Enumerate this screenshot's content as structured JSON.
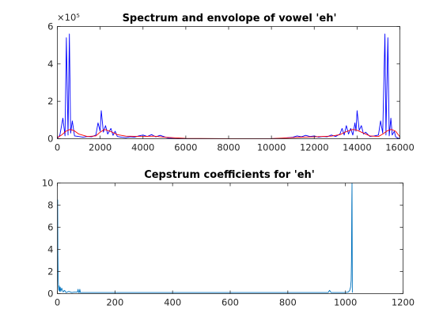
{
  "chart_data": [
    {
      "type": "line",
      "title": "Spectrum and envolope of vowel 'eh'",
      "xlabel": "",
      "ylabel": "",
      "xlim": [
        0,
        16000
      ],
      "ylim": [
        0,
        600000
      ],
      "y_exponent_label": "×10⁵",
      "xticks": [
        0,
        2000,
        4000,
        6000,
        8000,
        10000,
        12000,
        14000,
        16000
      ],
      "yticks": [
        0,
        200000,
        400000,
        600000
      ],
      "ytick_labels": [
        "0",
        "2",
        "4",
        "6"
      ],
      "grid": false,
      "series": [
        {
          "color": "#0000ff",
          "x": [
            0,
            120,
            260,
            360,
            420,
            500,
            560,
            620,
            700,
            800,
            1000,
            1200,
            1400,
            1600,
            1800,
            1900,
            2000,
            2050,
            2150,
            2250,
            2350,
            2500,
            2600,
            2700,
            2800,
            3000,
            3200,
            3400,
            3600,
            3800,
            4000,
            4200,
            4400,
            4600,
            4800,
            5000,
            5200,
            5500,
            6000,
            7000,
            8000,
            9000,
            10000,
            10500,
            11000,
            11200,
            11400,
            11600,
            11800,
            12000,
            12200,
            12400,
            12600,
            12800,
            13000,
            13200,
            13300,
            13400,
            13500,
            13600,
            13700,
            13800,
            13900,
            13950,
            14000,
            14100,
            14200,
            14300,
            14400,
            14600,
            14800,
            15000,
            15100,
            15200,
            15300,
            15350,
            15440,
            15500,
            15580,
            15640,
            15740,
            15800,
            15880,
            16000
          ],
          "y": [
            0,
            20000,
            110000,
            15000,
            540000,
            20000,
            560000,
            30000,
            95000,
            15000,
            12000,
            8000,
            12000,
            10000,
            20000,
            85000,
            40000,
            150000,
            35000,
            70000,
            25000,
            55000,
            18000,
            40000,
            12000,
            8000,
            6000,
            10000,
            8000,
            15000,
            20000,
            12000,
            22000,
            10000,
            18000,
            10000,
            3000,
            1000,
            500,
            300,
            300,
            300,
            500,
            2000,
            8000,
            15000,
            10000,
            18000,
            12000,
            15000,
            8000,
            12000,
            10000,
            20000,
            12000,
            25000,
            55000,
            20000,
            70000,
            25000,
            55000,
            20000,
            85000,
            40000,
            150000,
            45000,
            70000,
            25000,
            35000,
            12000,
            15000,
            20000,
            95000,
            30000,
            560000,
            20000,
            540000,
            15000,
            110000,
            20000,
            40000,
            10000,
            5000,
            0
          ]
        },
        {
          "color": "#ff0000",
          "x": [
            0,
            200,
            400,
            600,
            800,
            1000,
            1400,
            1800,
            2000,
            2200,
            2500,
            2800,
            3200,
            4000,
            4500,
            5000,
            6000,
            8000,
            10000,
            11000,
            11500,
            12000,
            12800,
            13200,
            13500,
            13800,
            14000,
            14200,
            14600,
            15000,
            15200,
            15400,
            15600,
            15800,
            16000
          ],
          "y": [
            5000,
            20000,
            40000,
            50000,
            42000,
            25000,
            12000,
            15000,
            35000,
            50000,
            38000,
            22000,
            14000,
            12000,
            14000,
            8000,
            1500,
            300,
            1000,
            6000,
            9000,
            10000,
            14000,
            22000,
            38000,
            50000,
            45000,
            35000,
            15000,
            12000,
            25000,
            42000,
            50000,
            40000,
            10000
          ]
        }
      ]
    },
    {
      "type": "line",
      "title": "Cepstrum coefficients for 'eh'",
      "xlabel": "",
      "ylabel": "",
      "xlim": [
        0,
        1200
      ],
      "ylim": [
        0,
        10
      ],
      "xticks": [
        0,
        200,
        400,
        600,
        800,
        1000,
        1200
      ],
      "yticks": [
        0,
        2,
        4,
        6,
        8,
        10
      ],
      "grid": false,
      "series": [
        {
          "color": "#0072bd",
          "x": [
            1,
            2,
            3,
            4,
            5,
            6,
            8,
            10,
            12,
            15,
            20,
            25,
            30,
            40,
            50,
            60,
            70,
            72,
            74,
            76,
            78,
            80,
            90,
            100,
            150,
            200,
            300,
            400,
            500,
            600,
            700,
            800,
            900,
            940,
            945,
            950,
            955,
            960,
            1000,
            1010,
            1015,
            1018,
            1020,
            1021,
            1022,
            1023,
            1024
          ],
          "y": [
            8.5,
            3.5,
            1.2,
            0.6,
            0.3,
            0.7,
            0.2,
            0.6,
            0.2,
            0.5,
            0.15,
            0.3,
            0.1,
            0.2,
            0.1,
            0.15,
            0.15,
            0.4,
            0.1,
            0.1,
            0.4,
            0.1,
            0.1,
            0.1,
            0.1,
            0.1,
            0.1,
            0.1,
            0.1,
            0.1,
            0.1,
            0.1,
            0.1,
            0.1,
            0.3,
            0.1,
            0.1,
            0.1,
            0.1,
            0.15,
            0.3,
            0.6,
            1.2,
            3.0,
            8.0,
            10.5,
            0.1
          ]
        }
      ]
    }
  ]
}
